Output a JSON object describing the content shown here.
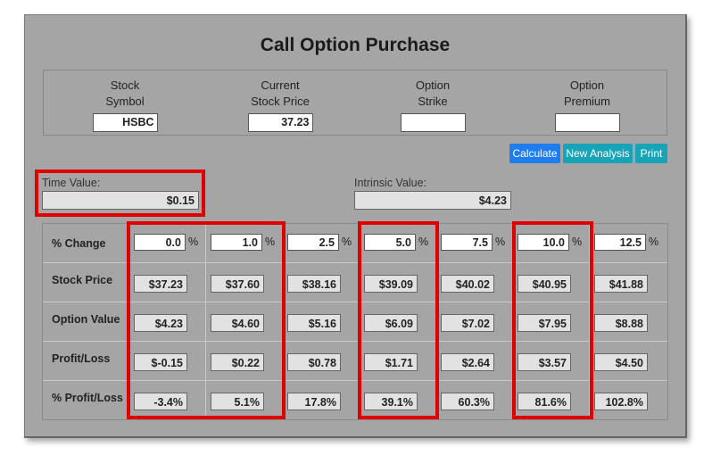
{
  "title": "Call Option Purchase",
  "inputs": {
    "stock_symbol": {
      "label_1": "Stock",
      "label_2": "Symbol",
      "value": "HSBC"
    },
    "current_price": {
      "label_1": "Current",
      "label_2": "Stock Price",
      "value": "37.23"
    },
    "option_strike": {
      "label_1": "Option",
      "label_2": "Strike",
      "value": ""
    },
    "option_premium": {
      "label_1": "Option",
      "label_2": "Premium",
      "value": ""
    }
  },
  "buttons": {
    "calculate": "Calculate",
    "new_analysis": "New Analysis",
    "print": "Print"
  },
  "time_value": {
    "label": "Time Value:",
    "value": "$0.15"
  },
  "intrinsic_value": {
    "label": "Intrinsic Value:",
    "value": "$4.23"
  },
  "table": {
    "row_labels": [
      "% Change",
      "Stock Price",
      "Option Value",
      "Profit/Loss",
      "% Profit/Loss"
    ],
    "pct_symbol": "%",
    "pct_change": [
      "0.0",
      "1.0",
      "2.5",
      "5.0",
      "7.5",
      "10.0",
      "12.5"
    ],
    "stock_price": [
      "$37.23",
      "$37.60",
      "$38.16",
      "$39.09",
      "$40.02",
      "$40.95",
      "$41.88"
    ],
    "option_value": [
      "$4.23",
      "$4.60",
      "$5.16",
      "$6.09",
      "$7.02",
      "$7.95",
      "$8.88"
    ],
    "profit_loss": [
      "$-0.15",
      "$0.22",
      "$0.78",
      "$1.71",
      "$2.64",
      "$3.57",
      "$4.50"
    ],
    "pct_profit_loss": [
      "-3.4%",
      "5.1%",
      "17.8%",
      "39.1%",
      "60.3%",
      "81.6%",
      "102.8%"
    ]
  },
  "highlight_color": "#e00000"
}
